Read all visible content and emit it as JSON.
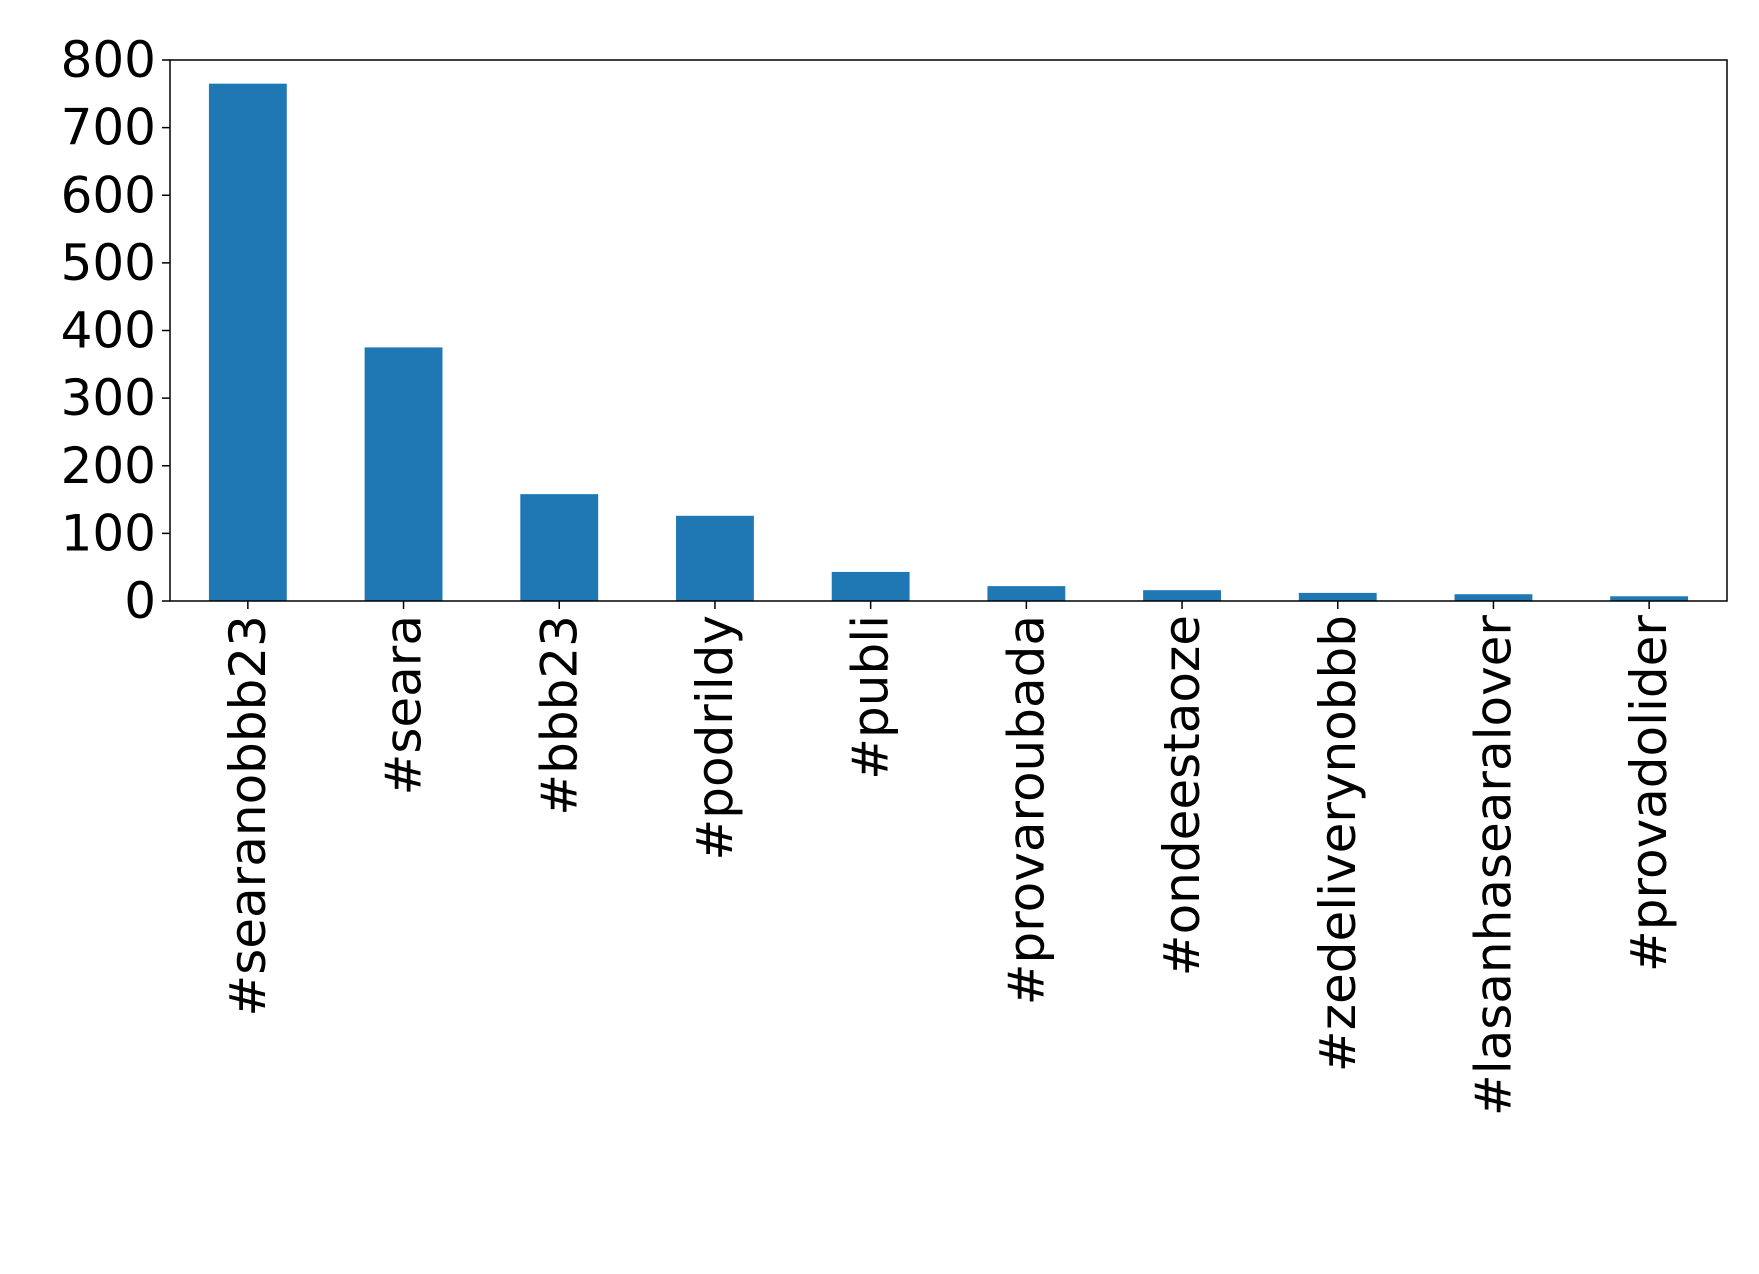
{
  "chart_data": {
    "type": "bar",
    "title": "",
    "xlabel": "",
    "ylabel": "",
    "categories": [
      "#searanobbb23",
      "#seara",
      "#bbb23",
      "#podrildy",
      "#publi",
      "#provaroubada",
      "#ondeestaoze",
      "#zedeliverynobbb",
      "#lasanhasearalover",
      "#provadolider"
    ],
    "values": [
      765,
      375,
      158,
      126,
      43,
      22,
      16,
      12,
      10,
      7
    ],
    "ylim": [
      0,
      800
    ],
    "yticks": [
      0,
      100,
      200,
      300,
      400,
      500,
      600,
      700,
      800
    ],
    "grid": false,
    "legend": "none",
    "colors": {
      "bar": "#1f77b4",
      "axis": "#000000"
    }
  }
}
